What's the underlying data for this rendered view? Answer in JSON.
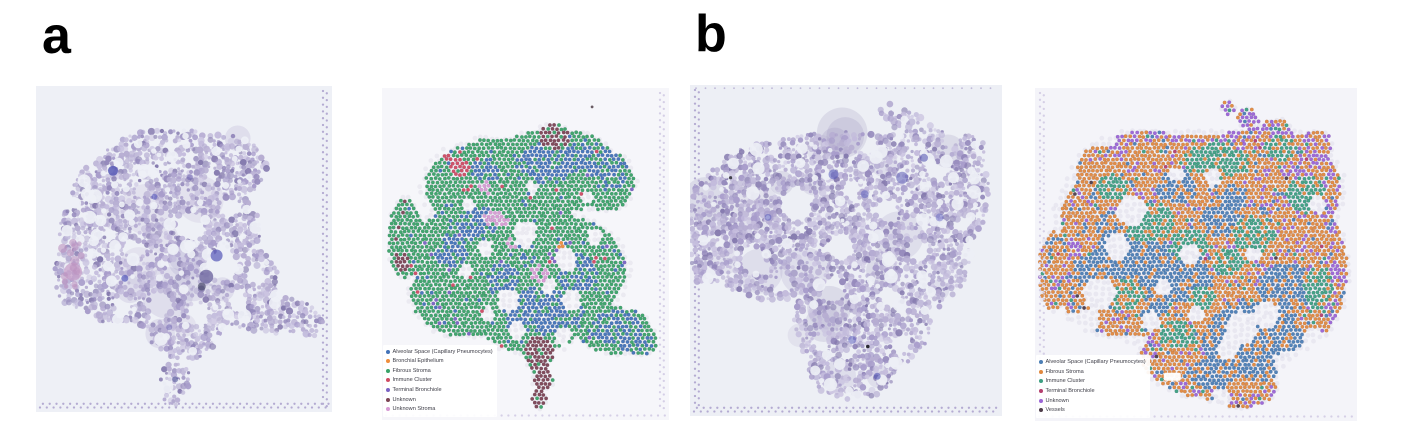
{
  "figure": {
    "panels": [
      {
        "label": "a",
        "histology": {
          "stain_tint": "#b6add2"
        },
        "cluster_map": {
          "legend": [
            {
              "label": "Alveolar Space (Capillary Pneumocytes)",
              "color": "#4272b8"
            },
            {
              "label": "Bronchial Epithelium",
              "color": "#ef8d3c"
            },
            {
              "label": "Fibrous Stroma",
              "color": "#39a268"
            },
            {
              "label": "Immune Cluster",
              "color": "#cf4a63"
            },
            {
              "label": "Terminal Bronchiole",
              "color": "#7a62c4"
            },
            {
              "label": "Unknown",
              "color": "#7c4455"
            },
            {
              "label": "Unknown Stroma",
              "color": "#d79ad4"
            }
          ]
        }
      },
      {
        "label": "b",
        "histology": {
          "stain_tint": "#b2a9cf"
        },
        "cluster_map": {
          "legend": [
            {
              "label": "Alveolar Space (Capillary Pneumocytes)",
              "color": "#4b7eb5"
            },
            {
              "label": "Fibrous Stroma",
              "color": "#e0883f"
            },
            {
              "label": "Immune Cluster",
              "color": "#3d9f82"
            },
            {
              "label": "Terminal Bronchiole",
              "color": "#b43f6e"
            },
            {
              "label": "Unknown",
              "color": "#9b64d6"
            },
            {
              "label": "Vessels",
              "color": "#4e3d4a"
            }
          ]
        }
      }
    ]
  }
}
